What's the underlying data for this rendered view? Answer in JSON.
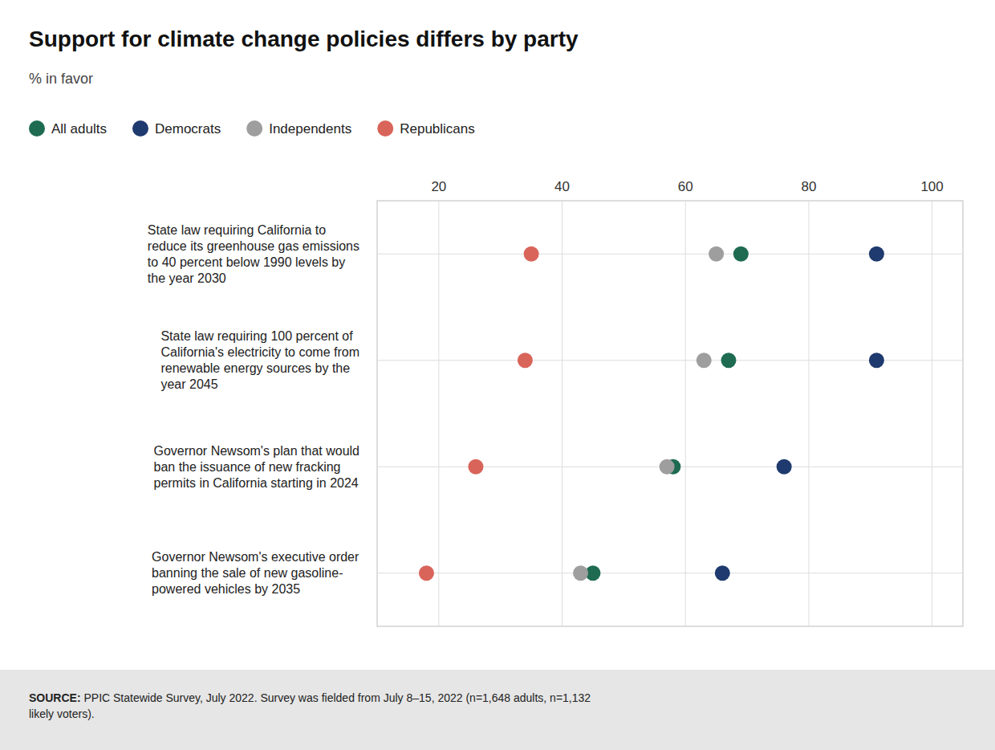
{
  "chart_data": {
    "type": "dot",
    "title": "Support for climate change policies differs by party",
    "subtitle": "% in favor",
    "categories": [
      "State law requiring California to\nreduce its greenhouse gas emissions\nto 40 percent below 1990 levels by\nthe year 2030",
      "State law requiring 100 percent of\nCalifornia's electricity to come from\nrenewable energy sources by the\nyear 2045",
      "Governor Newsom's plan that would\nban the issuance of new fracking\npermits in California starting in 2024",
      "Governor Newsom's executive order\nbanning the sale of new gasoline-\npowered vehicles by 2035"
    ],
    "series": [
      {
        "name": "All adults",
        "color": "#1e6b52",
        "values": [
          69,
          67,
          58,
          45
        ]
      },
      {
        "name": "Democrats",
        "color": "#1e3a6e",
        "values": [
          91,
          91,
          76,
          66
        ]
      },
      {
        "name": "Independents",
        "color": "#9e9e9e",
        "values": [
          65,
          63,
          57,
          43
        ]
      },
      {
        "name": "Republicans",
        "color": "#d9645a",
        "values": [
          35,
          34,
          26,
          18
        ]
      }
    ],
    "xlim": [
      10,
      105
    ],
    "xticks": [
      20,
      40,
      60,
      80,
      100
    ],
    "grid": true,
    "legend": "top",
    "marker": "circle",
    "annotations": [
      "SOURCE:",
      " PPIC Statewide Survey, July 2022. Survey was fielded from July 8–15, 2022 (n=1,648 adults, n=1,132\nlikely voters)."
    ]
  }
}
